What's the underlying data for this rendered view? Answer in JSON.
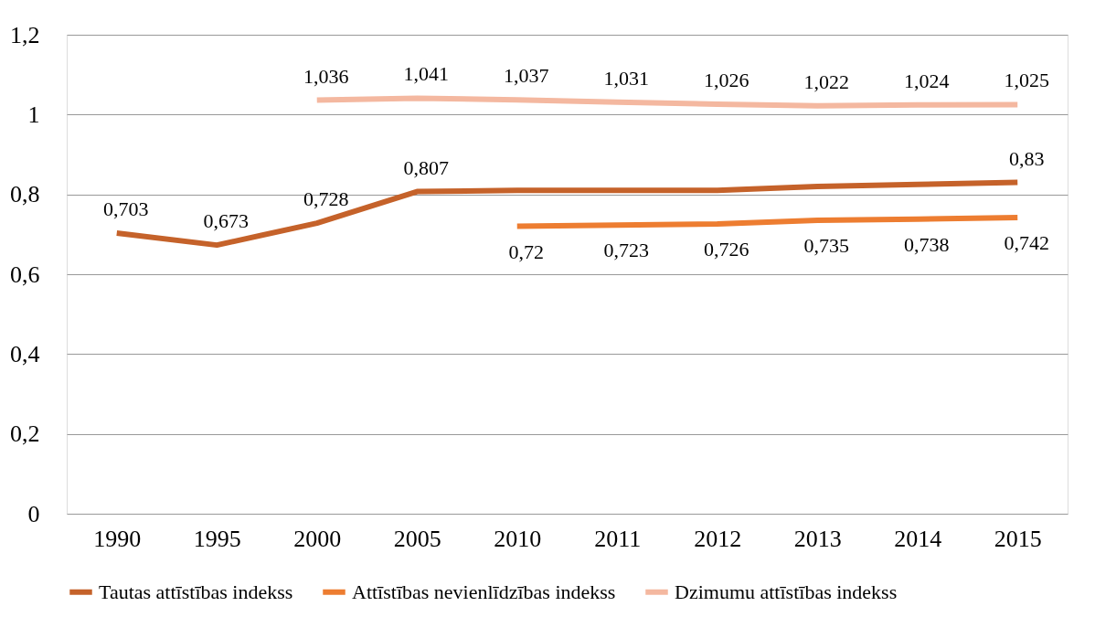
{
  "chart_data": {
    "type": "line",
    "categories": [
      "1990",
      "1995",
      "2000",
      "2005",
      "2010",
      "2011",
      "2012",
      "2013",
      "2014",
      "2015"
    ],
    "series": [
      {
        "name": "Tautas attīstības indekss",
        "color": "#c5622a",
        "values": [
          0.703,
          0.673,
          0.728,
          0.807,
          0.81,
          0.81,
          0.81,
          0.82,
          0.825,
          0.83
        ],
        "value_labels": [
          "0,703",
          "0,673",
          "0,728",
          "0,807",
          null,
          null,
          null,
          null,
          null,
          "0,83"
        ]
      },
      {
        "name": "Attīstības nevienlīdzības indekss",
        "color": "#ed7d31",
        "values": [
          null,
          null,
          null,
          null,
          0.72,
          0.723,
          0.726,
          0.735,
          0.738,
          0.742
        ],
        "value_labels": [
          null,
          null,
          null,
          null,
          "0,72",
          "0,723",
          "0,726",
          "0,735",
          "0,738",
          "0,742"
        ]
      },
      {
        "name": "Dzimumu attīstības indekss",
        "color": "#f4b8a0",
        "values": [
          null,
          null,
          1.036,
          1.041,
          1.037,
          1.031,
          1.026,
          1.022,
          1.024,
          1.025
        ],
        "value_labels": [
          null,
          null,
          "1,036",
          "1,041",
          "1,037",
          "1,031",
          "1,026",
          "1,022",
          "1,024",
          "1,025"
        ]
      }
    ],
    "ylim": [
      0,
      1.2
    ],
    "yticks": [
      {
        "value": 0,
        "label": "0"
      },
      {
        "value": 0.2,
        "label": "0,2"
      },
      {
        "value": 0.4,
        "label": "0,4"
      },
      {
        "value": 0.6,
        "label": "0,6"
      },
      {
        "value": 0.8,
        "label": "0,8"
      },
      {
        "value": 1,
        "label": "1"
      },
      {
        "value": 1.2,
        "label": "1,2"
      }
    ],
    "grid": "y",
    "legend": "bottom",
    "marker": "none",
    "line_style": "solid"
  }
}
